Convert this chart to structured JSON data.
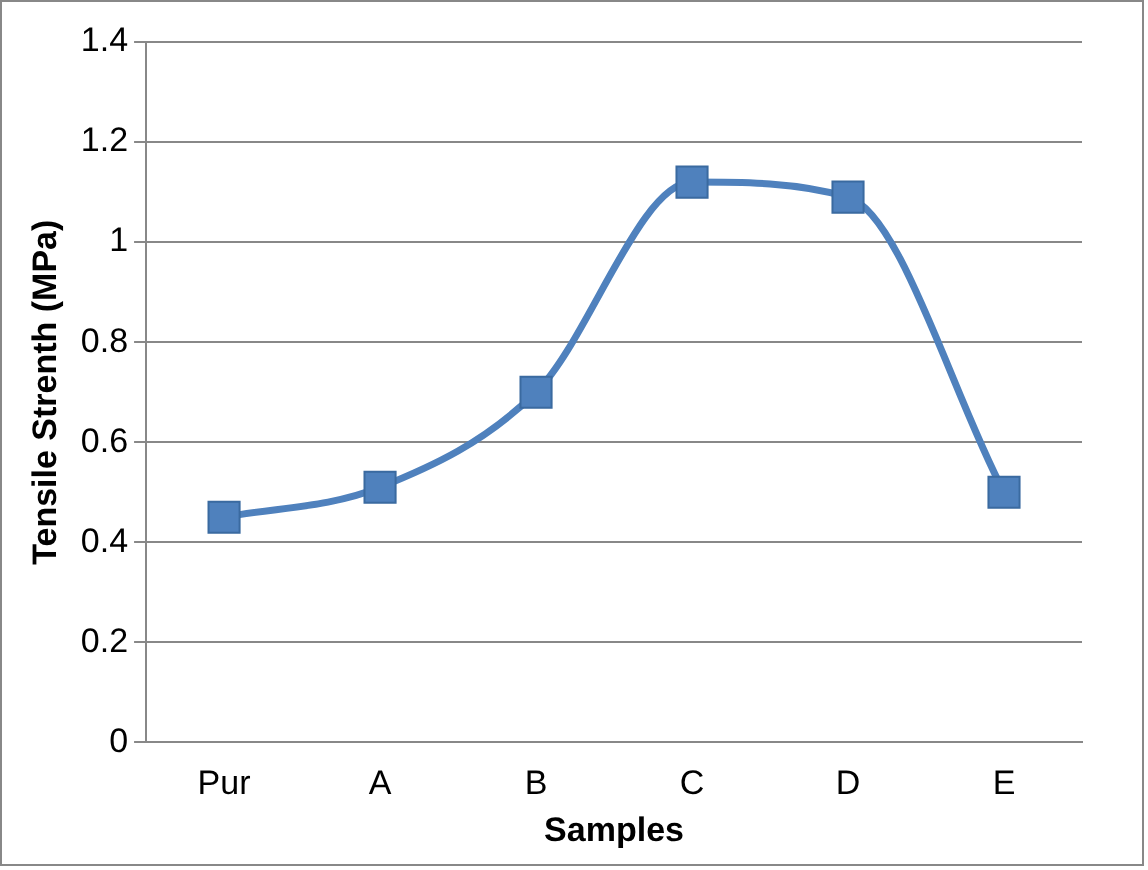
{
  "chart_data": {
    "type": "line",
    "xlabel": "Samples",
    "ylabel": "Tensile Strenth (MPa)",
    "categories": [
      "Pur",
      "A",
      "B",
      "C",
      "D",
      "E"
    ],
    "series": [
      {
        "color": "#4f81bd",
        "values": [
          0.45,
          0.51,
          0.7,
          1.12,
          1.09,
          0.5
        ]
      }
    ],
    "ylim": [
      0,
      1.4
    ],
    "yticks": [
      0,
      0.2,
      0.4,
      0.6,
      0.8,
      1,
      1.2,
      1.4
    ],
    "grid": "y",
    "marker": "square",
    "line_style": "solid",
    "legend": false
  }
}
